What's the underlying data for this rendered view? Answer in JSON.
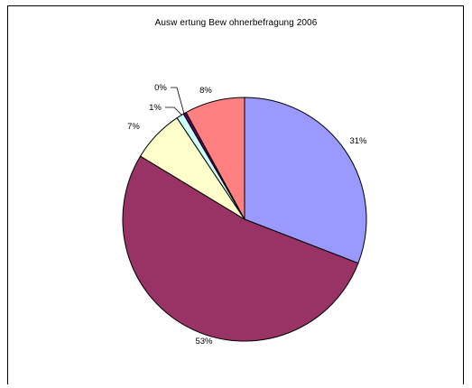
{
  "chart_data": {
    "type": "pie",
    "title": "Ausw ertung Bew ohnerbefragung 2006",
    "slices": [
      {
        "label": "31%",
        "value": 31,
        "color": "#9999ff"
      },
      {
        "label": "53%",
        "value": 53,
        "color": "#993366"
      },
      {
        "label": "7%",
        "value": 7,
        "color": "#ffffcc"
      },
      {
        "label": "1%",
        "value": 1,
        "color": "#ccffff"
      },
      {
        "label": "0%",
        "value": 0.4,
        "color": "#660066"
      },
      {
        "label": "8%",
        "value": 8,
        "color": "#ff8080"
      }
    ],
    "start": "12 o'clock",
    "direction": "clockwise",
    "legend": "none"
  }
}
